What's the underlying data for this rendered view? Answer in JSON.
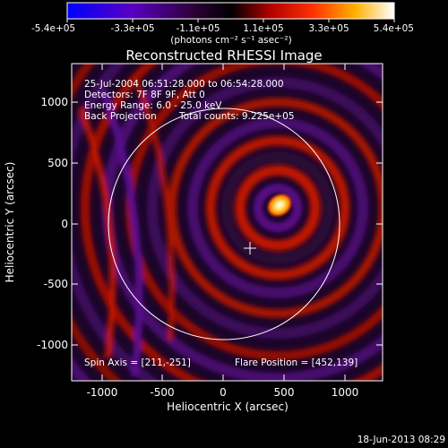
{
  "colorbar": {
    "labels": [
      "-5.4e+05",
      "-3.3e+05",
      "-1.1e+05",
      "1.1e+05",
      "3.3e+05",
      "5.4e+05"
    ],
    "unit_label": "(photons cm⁻² s⁻¹ asec⁻²)",
    "colors": [
      "#0000ff",
      "#5a00c0",
      "#2a0030",
      "#000000",
      "#b00000",
      "#ff3000",
      "#ffb000",
      "#ffffff"
    ]
  },
  "plot": {
    "title": "Reconstructed RHESSI Image",
    "xlabel": "Heliocentric X (arcsec)",
    "ylabel": "Heliocentric Y (arcsec)",
    "x_ticks": [
      "-1000",
      "-500",
      "0",
      "500",
      "1000"
    ],
    "y_ticks": [
      "1000",
      "500",
      "0",
      "-500",
      "-1000"
    ],
    "annotations": {
      "time_range": "25-Jul-2004 06:51:28.000 to 06:54:28.000",
      "detectors": "Detectors: 7F 8F 9F, Att 0",
      "energy": "Energy Range: 6.0 - 25.0 keV",
      "method": "Back Projection",
      "total_counts": "Total counts: 9.225e+05",
      "spin_axis": "Spin Axis = [211,-251]",
      "flare_position": "Flare Position = [452,139]"
    }
  },
  "timestamp": "18-Jun-2013 08:29"
}
